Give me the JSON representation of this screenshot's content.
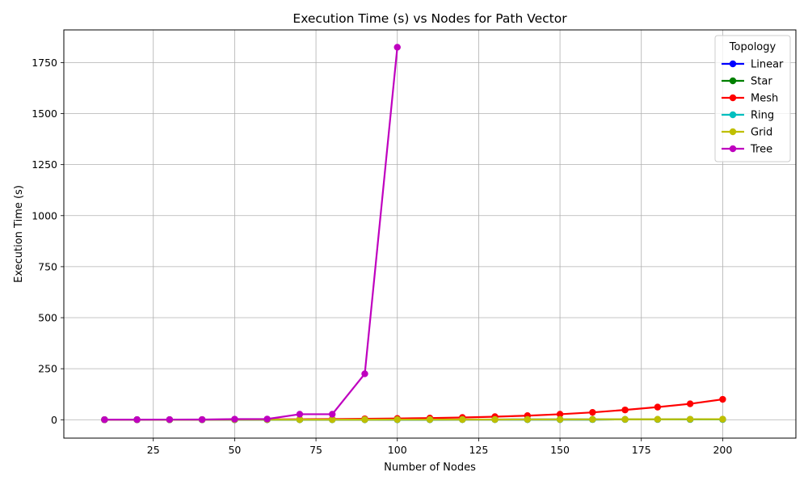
{
  "chart_data": {
    "type": "line",
    "title": "Execution Time (s) vs Nodes for Path Vector",
    "xlabel": "Number of Nodes",
    "ylabel": "Execution Time (s)",
    "xlim": [
      -2.5,
      222.5
    ],
    "ylim": [
      -90,
      1910
    ],
    "xticks": [
      25,
      50,
      75,
      100,
      125,
      150,
      175,
      200
    ],
    "yticks": [
      0,
      250,
      500,
      750,
      1000,
      1250,
      1500,
      1750
    ],
    "grid": true,
    "legend": {
      "title": "Topology",
      "placement": "top-right"
    },
    "x": [
      10,
      20,
      30,
      40,
      50,
      60,
      70,
      80,
      90,
      100,
      110,
      120,
      130,
      140,
      150,
      160,
      170,
      180,
      190,
      200
    ],
    "series": [
      {
        "name": "Linear",
        "color": "#0000ff",
        "values": [
          0.1,
          0.1,
          0.1,
          0.2,
          0.2,
          0.3,
          0.3,
          0.4,
          0.5,
          0.6,
          0.7,
          0.8,
          0.9,
          1.0,
          1.1,
          1.2,
          1.3,
          1.4,
          1.5,
          1.6
        ]
      },
      {
        "name": "Star",
        "color": "#008000",
        "values": [
          0.1,
          0.1,
          0.1,
          0.2,
          0.2,
          0.3,
          0.3,
          0.4,
          0.5,
          0.6,
          0.7,
          0.8,
          0.9,
          1.0,
          1.1,
          1.2,
          1.3,
          1.4,
          1.5,
          1.6
        ]
      },
      {
        "name": "Mesh",
        "color": "#ff0000",
        "values": [
          0.1,
          0.2,
          0.3,
          0.6,
          1.0,
          1.5,
          2.2,
          3.2,
          4.5,
          6.2,
          8.3,
          11,
          15,
          20,
          27,
          36,
          48,
          62,
          78,
          100
        ]
      },
      {
        "name": "Ring",
        "color": "#00bfbf",
        "values": [
          0.1,
          0.1,
          0.1,
          0.2,
          0.2,
          0.3,
          0.3,
          0.4,
          0.5,
          0.6,
          0.7,
          0.8,
          0.9,
          1.0,
          1.1,
          1.2,
          1.3,
          1.4,
          1.5,
          1.6
        ]
      },
      {
        "name": "Grid",
        "color": "#bfbf00",
        "values": [
          0.1,
          0.1,
          0.2,
          0.2,
          0.3,
          0.4,
          0.5,
          0.6,
          0.7,
          0.8,
          0.9,
          1.0,
          1.2,
          1.4,
          1.6,
          1.8,
          2.0,
          2.2,
          2.4,
          2.6
        ]
      },
      {
        "name": "Tree",
        "color": "#bf00bf",
        "values": [
          0.5,
          0.6,
          0.8,
          1.0,
          3.0,
          3.5,
          27,
          27,
          225,
          1825,
          null,
          null,
          null,
          null,
          null,
          null,
          null,
          null,
          null,
          null
        ]
      }
    ]
  }
}
